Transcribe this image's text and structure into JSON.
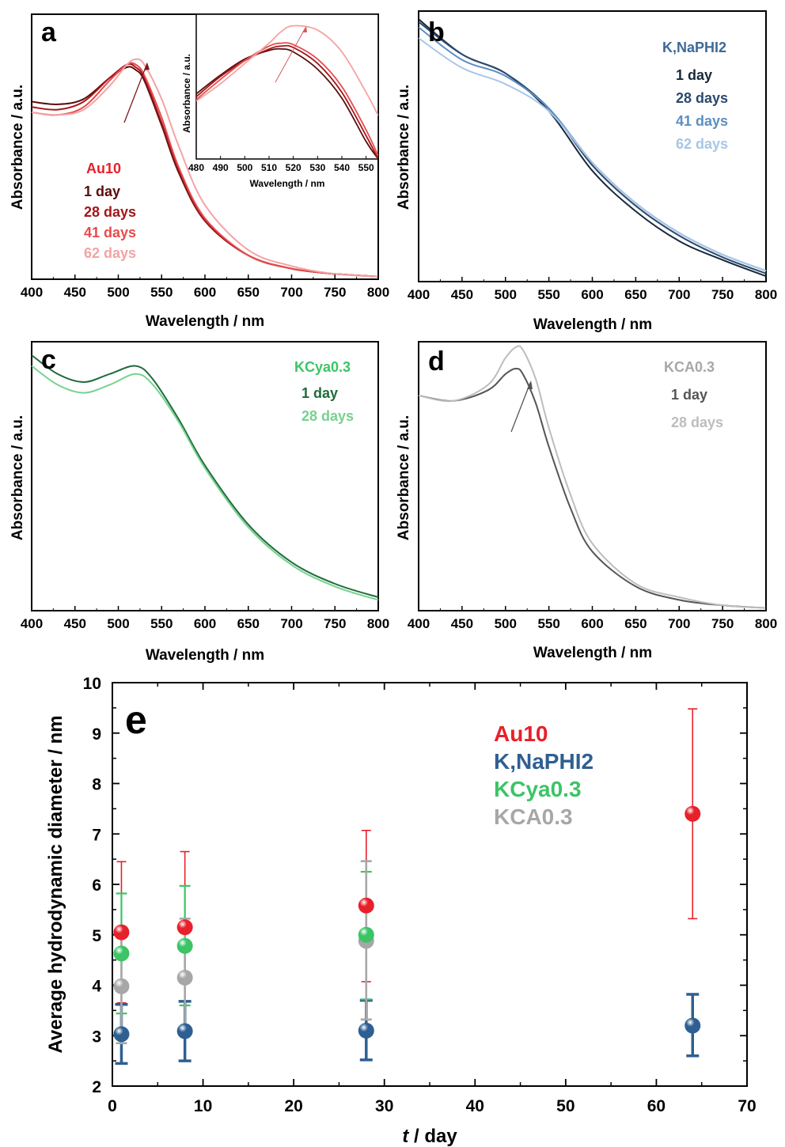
{
  "figure": {
    "panel_a": {
      "label": "a",
      "xlabel": "Wavelength / nm",
      "ylabel": "Absorbance / a.u.",
      "legend_title": "Au10",
      "legend_title_color": "#e8202a",
      "series": [
        {
          "name": "1 day",
          "color": "#5a0d0d"
        },
        {
          "name": "28 days",
          "color": "#a3171b"
        },
        {
          "name": "41 days",
          "color": "#e94a4c"
        },
        {
          "name": "62 days",
          "color": "#f4a3a3"
        }
      ],
      "inset": {
        "xlabel": "Wavelength / nm",
        "ylabel": "Absorbance / a.u."
      }
    },
    "panel_b": {
      "label": "b",
      "xlabel": "Wavelength / nm",
      "ylabel": "Absorbance / a.u.",
      "legend_title": "K,NaPHI2",
      "legend_title_color": "#3d6a99",
      "series": [
        {
          "name": "1 day",
          "color": "#17283c"
        },
        {
          "name": "28 days",
          "color": "#2b4a6e"
        },
        {
          "name": "41 days",
          "color": "#5b8fc4"
        },
        {
          "name": "62 days",
          "color": "#a8c6e6"
        }
      ]
    },
    "panel_c": {
      "label": "c",
      "xlabel": "Wavelength / nm",
      "ylabel": "Absorbance / a.u.",
      "legend_title": "KCya0.3",
      "legend_title_color": "#3cc466",
      "series": [
        {
          "name": "1 day",
          "color": "#1f6b3a"
        },
        {
          "name": "28 days",
          "color": "#76d28e"
        }
      ]
    },
    "panel_d": {
      "label": "d",
      "xlabel": "Wavelength / nm",
      "ylabel": "Absorbance / a.u.",
      "legend_title": "KCA0.3",
      "legend_title_color": "#a7a7a7",
      "series": [
        {
          "name": "1 day",
          "color": "#555555"
        },
        {
          "name": "28 days",
          "color": "#bdbdbd"
        }
      ]
    },
    "panel_e": {
      "label": "e",
      "xlabel_italic": "t",
      "xlabel_rest": " / day",
      "ylabel": "Average hydrodynamic diameter / nm"
    }
  },
  "chart_data": [
    {
      "type": "line",
      "panel": "a",
      "xlabel": "Wavelength / nm",
      "ylabel": "Absorbance / a.u.",
      "xlim": [
        400,
        800
      ],
      "x_ticks": [
        400,
        450,
        500,
        550,
        600,
        650,
        700,
        750,
        800
      ],
      "ylim": [
        0,
        1
      ],
      "y_ticks_shown": false,
      "x": [
        400,
        430,
        460,
        490,
        510,
        520,
        530,
        550,
        570,
        600,
        650,
        700,
        750,
        800
      ],
      "series": [
        {
          "name": "1 day",
          "values": [
            0.67,
            0.66,
            0.68,
            0.76,
            0.8,
            0.79,
            0.75,
            0.58,
            0.4,
            0.22,
            0.09,
            0.04,
            0.02,
            0.01
          ]
        },
        {
          "name": "28 days",
          "values": [
            0.65,
            0.64,
            0.67,
            0.76,
            0.81,
            0.8,
            0.76,
            0.59,
            0.41,
            0.22,
            0.09,
            0.04,
            0.02,
            0.01
          ]
        },
        {
          "name": "41 days",
          "values": [
            0.63,
            0.62,
            0.65,
            0.75,
            0.81,
            0.81,
            0.77,
            0.61,
            0.42,
            0.23,
            0.09,
            0.04,
            0.02,
            0.01
          ]
        },
        {
          "name": "62 days",
          "values": [
            0.63,
            0.62,
            0.64,
            0.73,
            0.81,
            0.83,
            0.81,
            0.68,
            0.5,
            0.28,
            0.11,
            0.05,
            0.02,
            0.01
          ]
        }
      ],
      "inset": {
        "xlim": [
          480,
          555
        ],
        "x_ticks": [
          480,
          490,
          500,
          510,
          520,
          530,
          540,
          550
        ],
        "xlabel": "Wavelength / nm",
        "ylabel": "Absorbance / a.u.",
        "x": [
          480,
          490,
          500,
          510,
          515,
          520,
          530,
          540,
          550,
          555
        ],
        "series": [
          {
            "name": "1 day",
            "values": [
              0.45,
              0.58,
              0.69,
              0.75,
              0.76,
              0.74,
              0.62,
              0.42,
              0.12,
              0.0
            ]
          },
          {
            "name": "28 days",
            "values": [
              0.43,
              0.57,
              0.68,
              0.76,
              0.78,
              0.77,
              0.66,
              0.46,
              0.16,
              0.0
            ]
          },
          {
            "name": "41 days",
            "values": [
              0.41,
              0.55,
              0.68,
              0.78,
              0.8,
              0.79,
              0.69,
              0.5,
              0.2,
              0.02
            ]
          },
          {
            "name": "62 days",
            "values": [
              0.4,
              0.52,
              0.66,
              0.8,
              0.88,
              0.92,
              0.89,
              0.74,
              0.46,
              0.3
            ]
          }
        ]
      }
    },
    {
      "type": "line",
      "panel": "b",
      "xlabel": "Wavelength / nm",
      "ylabel": "Absorbance / a.u.",
      "xlim": [
        400,
        800
      ],
      "x_ticks": [
        400,
        450,
        500,
        550,
        600,
        650,
        700,
        750,
        800
      ],
      "ylim": [
        0,
        1
      ],
      "y_ticks_shown": false,
      "x": [
        400,
        450,
        500,
        550,
        600,
        650,
        700,
        750,
        800
      ],
      "series": [
        {
          "name": "1 day",
          "values": [
            0.97,
            0.84,
            0.77,
            0.63,
            0.41,
            0.26,
            0.15,
            0.08,
            0.02
          ]
        },
        {
          "name": "28 days",
          "values": [
            0.96,
            0.84,
            0.77,
            0.64,
            0.43,
            0.28,
            0.17,
            0.09,
            0.03
          ]
        },
        {
          "name": "41 days",
          "values": [
            0.94,
            0.82,
            0.76,
            0.64,
            0.44,
            0.29,
            0.18,
            0.1,
            0.04
          ]
        },
        {
          "name": "62 days",
          "values": [
            0.9,
            0.79,
            0.73,
            0.63,
            0.44,
            0.29,
            0.18,
            0.1,
            0.04
          ]
        }
      ]
    },
    {
      "type": "line",
      "panel": "c",
      "xlabel": "Wavelength / nm",
      "ylabel": "Absorbance / a.u.",
      "xlim": [
        400,
        800
      ],
      "x_ticks": [
        400,
        450,
        500,
        550,
        600,
        650,
        700,
        750,
        800
      ],
      "ylim": [
        0,
        1
      ],
      "y_ticks_shown": false,
      "x": [
        400,
        430,
        460,
        490,
        520,
        540,
        570,
        600,
        650,
        700,
        750,
        800
      ],
      "series": [
        {
          "name": "1 day",
          "values": [
            0.95,
            0.88,
            0.85,
            0.88,
            0.91,
            0.86,
            0.71,
            0.54,
            0.32,
            0.18,
            0.1,
            0.05
          ]
        },
        {
          "name": "28 days",
          "values": [
            0.91,
            0.84,
            0.81,
            0.84,
            0.88,
            0.84,
            0.7,
            0.53,
            0.31,
            0.17,
            0.09,
            0.04
          ]
        }
      ]
    },
    {
      "type": "line",
      "panel": "d",
      "xlabel": "Wavelength / nm",
      "ylabel": "Absorbance / a.u.",
      "xlim": [
        400,
        800
      ],
      "x_ticks": [
        400,
        450,
        500,
        550,
        600,
        650,
        700,
        750,
        800
      ],
      "ylim": [
        0,
        1
      ],
      "y_ticks_shown": false,
      "x": [
        400,
        440,
        480,
        500,
        512,
        520,
        535,
        550,
        575,
        600,
        650,
        700,
        750,
        800
      ],
      "series": [
        {
          "name": "1 day",
          "values": [
            0.8,
            0.78,
            0.82,
            0.88,
            0.9,
            0.88,
            0.77,
            0.61,
            0.38,
            0.22,
            0.09,
            0.04,
            0.02,
            0.01
          ]
        },
        {
          "name": "28 days",
          "values": [
            0.8,
            0.78,
            0.84,
            0.94,
            0.98,
            0.97,
            0.86,
            0.68,
            0.43,
            0.25,
            0.1,
            0.05,
            0.02,
            0.01
          ]
        }
      ]
    },
    {
      "type": "scatter",
      "panel": "e",
      "xlabel": "t / day",
      "ylabel": "Average hydrodynamic diameter / nm",
      "xlim": [
        0,
        70
      ],
      "ylim": [
        2,
        10
      ],
      "x_ticks": [
        0,
        10,
        20,
        30,
        40,
        50,
        60,
        70
      ],
      "y_ticks": [
        2,
        3,
        4,
        5,
        6,
        7,
        8,
        9,
        10
      ],
      "series": [
        {
          "name": "Au10",
          "color": "#e8202a",
          "x": [
            1,
            8,
            28,
            64
          ],
          "values": [
            5.05,
            5.15,
            5.58,
            7.4
          ],
          "err_low": [
            3.65,
            3.67,
            4.07,
            5.32
          ],
          "err_high": [
            6.45,
            6.65,
            7.07,
            9.48
          ]
        },
        {
          "name": "K,NaPHI2",
          "color": "#2f5f92",
          "x": [
            1,
            8,
            28,
            64
          ],
          "values": [
            3.03,
            3.09,
            3.1,
            3.2
          ],
          "err_low": [
            2.45,
            2.5,
            2.52,
            2.6
          ],
          "err_high": [
            3.62,
            3.68,
            3.7,
            3.82
          ]
        },
        {
          "name": "KCya0.3",
          "color": "#3cc466",
          "x": [
            1,
            8,
            28
          ],
          "values": [
            4.63,
            4.78,
            5.0
          ],
          "err_low": [
            3.44,
            3.6,
            3.72
          ],
          "err_high": [
            5.82,
            5.97,
            6.25
          ]
        },
        {
          "name": "KCA0.3",
          "color": "#a7a7a7",
          "x": [
            1,
            8,
            28
          ],
          "values": [
            3.98,
            4.15,
            4.88
          ],
          "err_low": [
            2.85,
            3.0,
            3.32
          ],
          "err_high": [
            5.1,
            5.32,
            6.46
          ]
        }
      ]
    }
  ]
}
